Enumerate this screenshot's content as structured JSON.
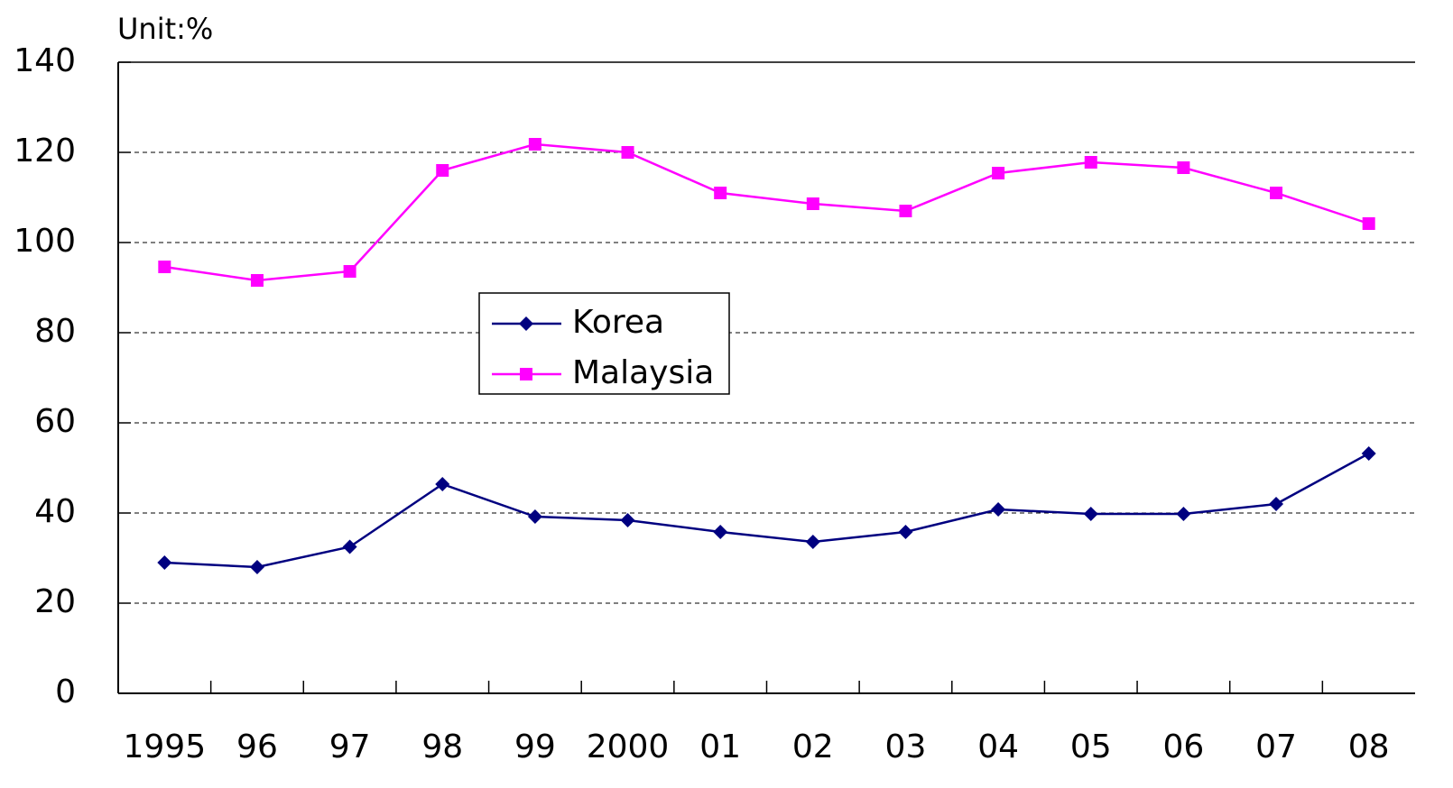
{
  "chart_data": {
    "type": "line",
    "annotations": [
      "Unit:%"
    ],
    "categories": [
      "1995",
      "96",
      "97",
      "98",
      "99",
      "2000",
      "01",
      "02",
      "03",
      "04",
      "05",
      "06",
      "07",
      "08"
    ],
    "series": [
      {
        "name": "Korea",
        "color": "#000080",
        "marker": "diamond",
        "values": [
          29,
          28,
          32.5,
          46.4,
          39.2,
          38.4,
          35.8,
          33.6,
          35.8,
          40.8,
          39.8,
          39.8,
          42,
          53.2
        ]
      },
      {
        "name": "Malaysia",
        "color": "#ff00ff",
        "marker": "square",
        "values": [
          94.6,
          91.6,
          93.6,
          116,
          121.8,
          120,
          111,
          108.6,
          107,
          115.4,
          117.8,
          116.6,
          111,
          104.2
        ]
      }
    ],
    "ylim": [
      0,
      140
    ],
    "yticks": [
      0,
      20,
      40,
      60,
      80,
      100,
      120,
      140
    ],
    "grid": true
  }
}
